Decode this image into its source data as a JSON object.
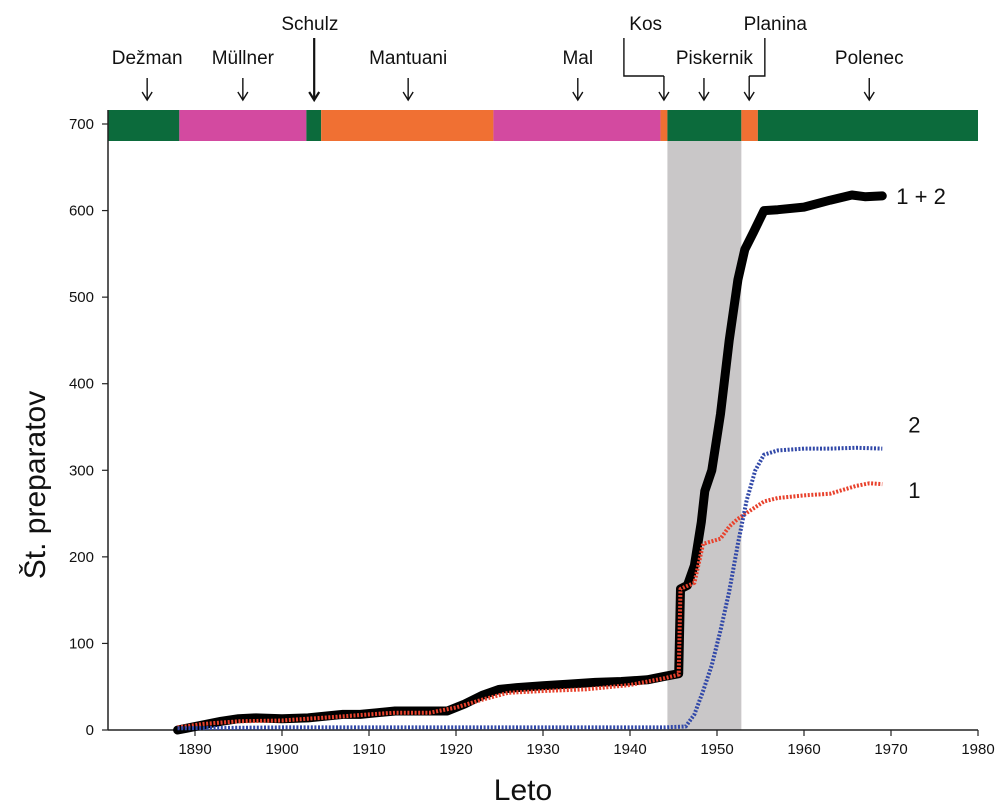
{
  "chart_data": {
    "type": "line",
    "title": "",
    "xlabel": "Leto",
    "ylabel": "Št. preparatov",
    "xlim": [
      1880,
      1980
    ],
    "ylim": [
      0,
      700
    ],
    "x_ticks": [
      1890,
      1900,
      1910,
      1920,
      1930,
      1940,
      1950,
      1960,
      1970,
      1980
    ],
    "y_ticks": [
      0,
      100,
      200,
      300,
      400,
      500,
      600,
      700
    ],
    "grid": false,
    "highlight_span": {
      "from": 1944.3,
      "to": 1952.8,
      "color": "#c9c7c8"
    },
    "eras": [
      {
        "name": "Dežman",
        "from": 1880,
        "to": 1888.2,
        "color": "#0c6b3c",
        "arrow_x": 1884.5
      },
      {
        "name": "Müllner",
        "from": 1888.2,
        "to": 1902.8,
        "color": "#d34aa0",
        "arrow_x": 1895.5
      },
      {
        "name": "Schulz",
        "from": 1902.8,
        "to": 1904.5,
        "color": "#0c6b3c",
        "arrow_x": 1903.7
      },
      {
        "name": "Mantuani",
        "from": 1904.5,
        "to": 1924.3,
        "color": "#f07033",
        "arrow_x": 1914.5
      },
      {
        "name": "Mal",
        "from": 1924.3,
        "to": 1943.5,
        "color": "#d34aa0",
        "arrow_x": 1934.0
      },
      {
        "name": "Kos",
        "from": 1943.5,
        "to": 1944.3,
        "color": "#f07033",
        "arrow_x": 1943.9
      },
      {
        "name": "Piskernik",
        "from": 1944.3,
        "to": 1952.8,
        "color": "#0c6b3c",
        "arrow_x": 1948.5
      },
      {
        "name": "Planina",
        "from": 1952.8,
        "to": 1954.7,
        "color": "#f07033",
        "arrow_x": 1953.7
      },
      {
        "name": "Polenec",
        "from": 1954.7,
        "to": 1980,
        "color": "#0c6b3c",
        "arrow_x": 1967.5
      }
    ],
    "series": [
      {
        "name": "1 + 2",
        "color": "#000000",
        "style": "solid",
        "x": [
          1888,
          1889,
          1891,
          1893,
          1895,
          1897,
          1900,
          1903,
          1905,
          1907,
          1909,
          1911,
          1913,
          1915,
          1917,
          1919,
          1921,
          1923,
          1925,
          1927,
          1930,
          1933,
          1936,
          1939,
          1942,
          1944,
          1945.6,
          1945.8,
          1946.6,
          1947.4,
          1948.2,
          1948.6,
          1949.4,
          1950.4,
          1951.4,
          1952.4,
          1953.2,
          1954.2,
          1955.4,
          1957,
          1960,
          1963,
          1965.5,
          1967,
          1969
        ],
        "values": [
          0,
          2,
          6,
          10,
          13,
          14,
          13,
          14,
          16,
          18,
          18,
          20,
          22,
          22,
          22,
          22,
          30,
          40,
          47,
          49,
          51,
          53,
          55,
          56,
          58,
          62,
          65,
          163,
          167,
          190,
          240,
          276,
          300,
          365,
          450,
          520,
          555,
          575,
          600,
          601,
          604,
          612,
          618,
          616,
          617
        ]
      },
      {
        "name": "1",
        "color": "#e8412c",
        "style": "dotted",
        "x": [
          1888,
          1891,
          1895,
          1900,
          1903,
          1906,
          1910,
          1913,
          1917,
          1920,
          1923,
          1926,
          1930,
          1935,
          1940,
          1944,
          1945.6,
          1945.8,
          1947.4,
          1948.4,
          1950.4,
          1951.4,
          1952.4,
          1953.6,
          1955.4,
          1957,
          1960,
          1963,
          1966,
          1967.5,
          1969
        ],
        "values": [
          3,
          7,
          10,
          11,
          13,
          15,
          18,
          20,
          20,
          26,
          35,
          43,
          45,
          47,
          52,
          60,
          64,
          163,
          170,
          215,
          221,
          235,
          244,
          252,
          264,
          268,
          271,
          273,
          282,
          285,
          284
        ]
      },
      {
        "name": "2",
        "color": "#3148a8",
        "style": "dotted",
        "x": [
          1888,
          1900,
          1920,
          1944,
          1946.4,
          1947.4,
          1948.4,
          1949.4,
          1950.4,
          1951.4,
          1952.4,
          1953.4,
          1954.4,
          1955.4,
          1957,
          1960,
          1963,
          1966,
          1969
        ],
        "values": [
          2,
          3,
          3,
          3,
          4,
          18,
          45,
          75,
          115,
          160,
          215,
          265,
          300,
          318,
          323,
          325,
          325,
          326,
          325
        ]
      }
    ]
  }
}
